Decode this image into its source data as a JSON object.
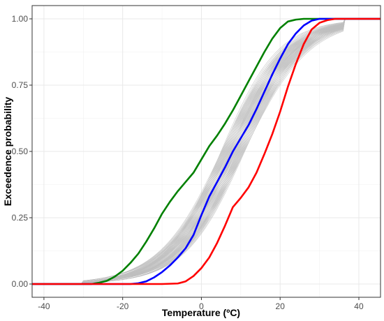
{
  "chart_data": {
    "type": "line",
    "title": "",
    "xlabel": "Temperature (ºC)",
    "ylabel": "Exceedence probability",
    "xlim": [
      -43,
      45.5
    ],
    "ylim": [
      -0.05,
      1.05
    ],
    "x_ticks": [
      -40,
      -20,
      0,
      20,
      40
    ],
    "x_tick_labels": [
      "-40",
      "-20",
      "0",
      "20",
      "40"
    ],
    "y_ticks": [
      0,
      0.25,
      0.5,
      0.75,
      1
    ],
    "y_tick_labels": [
      "0.00",
      "0.25",
      "0.50",
      "0.75",
      "1.00"
    ],
    "grid": true,
    "legend": "none",
    "ensemble": {
      "description_color": "#bebebe",
      "members": 60,
      "x_center_range": [
        5,
        11
      ],
      "scale_range": [
        7.2,
        8.4
      ]
    },
    "series": [
      {
        "color": "#008000",
        "x": [
          -43,
          -28,
          -26,
          -24,
          -22,
          -20,
          -18,
          -16,
          -14,
          -12,
          -10,
          -8,
          -6,
          -4,
          -2,
          0,
          2,
          4,
          6,
          8,
          10,
          12,
          14,
          16,
          18,
          20,
          22,
          24,
          26,
          28,
          30,
          33,
          36,
          45.5
        ],
        "values": [
          0,
          0,
          0.005,
          0.012,
          0.028,
          0.05,
          0.08,
          0.115,
          0.16,
          0.21,
          0.265,
          0.31,
          0.35,
          0.385,
          0.42,
          0.47,
          0.52,
          0.56,
          0.605,
          0.655,
          0.71,
          0.765,
          0.82,
          0.875,
          0.925,
          0.965,
          0.99,
          0.997,
          1,
          1,
          1,
          1,
          1,
          1
        ]
      },
      {
        "color": "#0000ff",
        "x": [
          -43,
          -18,
          -16,
          -14,
          -12,
          -10,
          -8,
          -6,
          -4,
          -2,
          0,
          2,
          4,
          6,
          8,
          10,
          12,
          14,
          16,
          18,
          20,
          22,
          24,
          26,
          28,
          30,
          32,
          36,
          45.5
        ],
        "values": [
          0,
          0,
          0.003,
          0.01,
          0.025,
          0.045,
          0.07,
          0.1,
          0.135,
          0.185,
          0.26,
          0.33,
          0.385,
          0.44,
          0.5,
          0.55,
          0.6,
          0.66,
          0.725,
          0.79,
          0.85,
          0.905,
          0.945,
          0.975,
          0.993,
          1,
          1,
          1,
          1
        ]
      },
      {
        "color": "#ff0000",
        "x": [
          -43,
          -10,
          -6,
          -4,
          -2,
          0,
          2,
          4,
          6,
          8,
          10,
          12,
          14,
          16,
          18,
          20,
          22,
          24,
          26,
          28,
          30,
          32,
          34,
          36,
          45.5
        ],
        "values": [
          0,
          0,
          0.002,
          0.01,
          0.03,
          0.06,
          0.1,
          0.155,
          0.22,
          0.29,
          0.325,
          0.365,
          0.42,
          0.49,
          0.565,
          0.65,
          0.745,
          0.83,
          0.905,
          0.96,
          0.985,
          0.995,
          1,
          1,
          1
        ]
      }
    ]
  }
}
